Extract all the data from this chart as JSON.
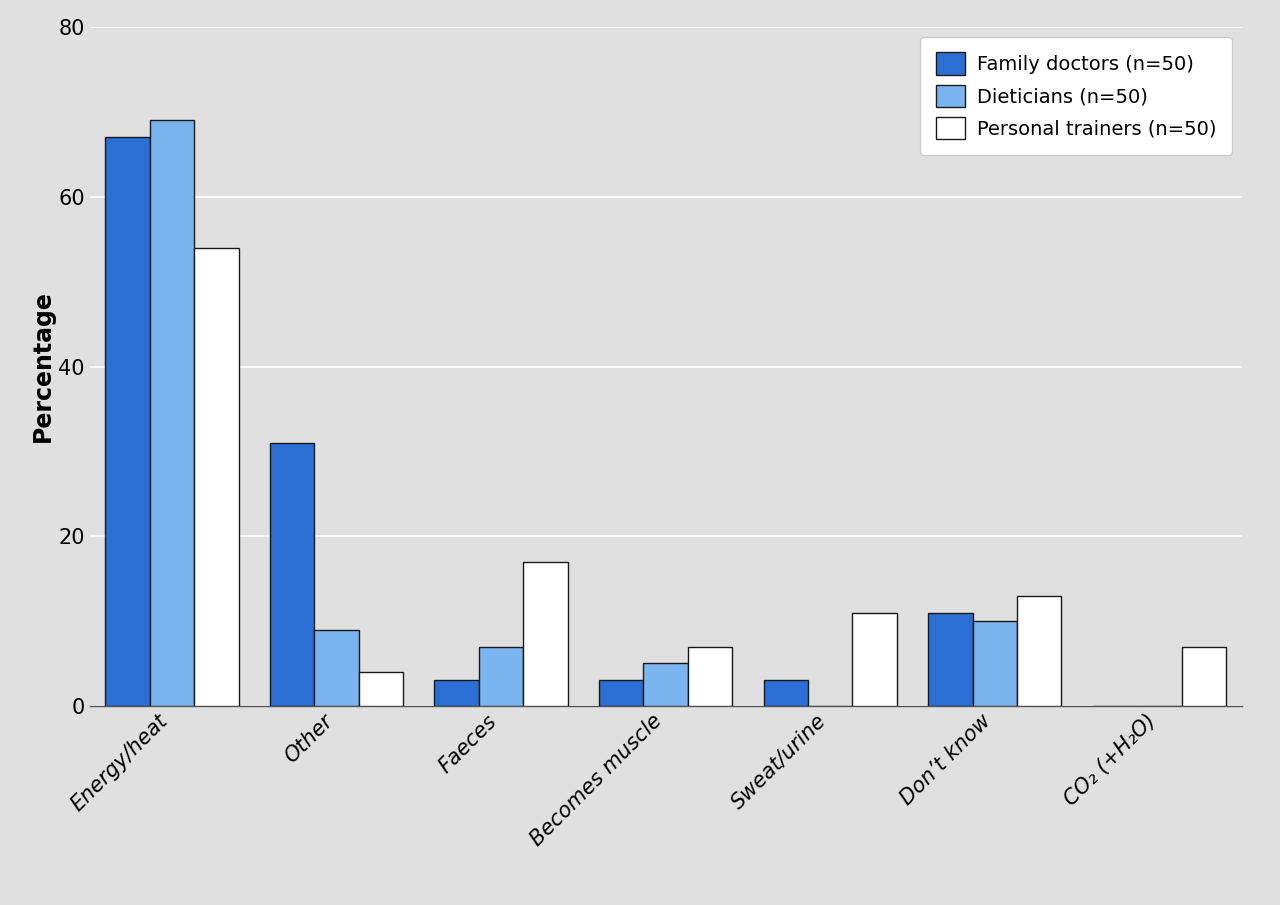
{
  "categories": [
    "Energy/heat",
    "Other",
    "Faeces",
    "Becomes muscle",
    "Sweat/urine",
    "Don’t know",
    "CO₂ (+H₂O)"
  ],
  "family_doctors": [
    67,
    31,
    3,
    3,
    3,
    11,
    0
  ],
  "dieticians": [
    69,
    9,
    7,
    5,
    0,
    10,
    0
  ],
  "personal_trainers": [
    54,
    4,
    17,
    7,
    11,
    13,
    7
  ],
  "legend_labels": [
    "Family doctors (n=50)",
    "Dieticians (n=50)",
    "Personal trainers (n=50)"
  ],
  "colors": {
    "family_doctors": "#2B6FD4",
    "dieticians": "#7BB5F0",
    "personal_trainers": "#FFFFFF"
  },
  "edgecolors": {
    "family_doctors": "#1A1A1A",
    "dieticians": "#1A1A1A",
    "personal_trainers": "#1A1A1A"
  },
  "ylabel": "Percentage",
  "ylim": [
    0,
    80
  ],
  "yticks": [
    0,
    20,
    40,
    60,
    80
  ],
  "background_color": "#E0E0E0",
  "bar_width": 0.27,
  "axis_label_fontsize": 17,
  "tick_fontsize": 15,
  "legend_fontsize": 14
}
